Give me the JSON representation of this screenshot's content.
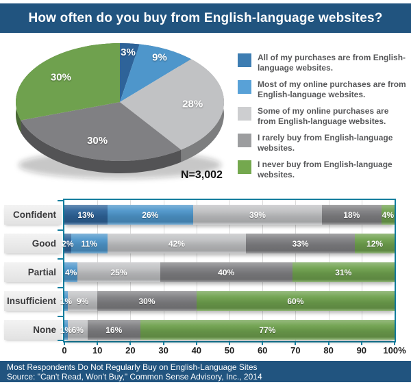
{
  "header": {
    "title": "How often do you buy from English-language websites?"
  },
  "colors": {
    "band_blue": "#21547F",
    "plot_border_teal": "#137E9E",
    "all_purchases": "#2E6399",
    "most_purchases": "#4E96CB",
    "some_purchases": "#C1C2C4",
    "rarely_buy": "#808083",
    "never_buy": "#6FA14E"
  },
  "chart_data": [
    {
      "type": "pie",
      "title": "How often do you buy from English-language websites?",
      "note": "N=3,002",
      "legend_position": "right",
      "slices": [
        {
          "label": "All of my purchases are from English-language websites.",
          "value": 3,
          "data_label": "3%",
          "color": "#2E6399",
          "swatch": "#3D7DB2"
        },
        {
          "label": "Most of my online purchases are from English-language websites.",
          "value": 9,
          "data_label": "9%",
          "color": "#4E96CB",
          "swatch": "#58A1D7"
        },
        {
          "label": "Some of my online purchases are from English-language websites.",
          "value": 28,
          "data_label": "28%",
          "color": "#C1C2C4",
          "swatch": "#CDCED0"
        },
        {
          "label": "I rarely buy from English-language websites.",
          "value": 30,
          "data_label": "30%",
          "color": "#808083",
          "swatch": "#9C9D9F"
        },
        {
          "label": "I never buy from English-language websites.",
          "value": 30,
          "data_label": "30%",
          "color": "#6FA14E",
          "swatch": "#74A84E"
        }
      ]
    },
    {
      "type": "bar",
      "orientation": "horizontal",
      "stacked": true,
      "categories": [
        "Confident",
        "Good",
        "Partial",
        "Insufficient",
        "None"
      ],
      "series": [
        {
          "name": "All of my purchases are from English-language websites.",
          "color": "#2E6399",
          "values": [
            13,
            2,
            0,
            0,
            0
          ]
        },
        {
          "name": "Most of my online purchases are from English-language websites.",
          "color": "#4E96CB",
          "values": [
            26,
            11,
            4,
            1,
            1
          ]
        },
        {
          "name": "Some of my online purchases are from English-language websites.",
          "color": "#C1C2C4",
          "values": [
            39,
            42,
            25,
            9,
            6
          ]
        },
        {
          "name": "I rarely buy from English-language websites.",
          "color": "#808083",
          "values": [
            18,
            33,
            40,
            30,
            16
          ]
        },
        {
          "name": "I never buy from English-language websites.",
          "color": "#6FA14E",
          "values": [
            4,
            12,
            31,
            60,
            77
          ]
        }
      ],
      "x_ticks": [
        "0",
        "10",
        "20",
        "30",
        "40",
        "50",
        "60",
        "70",
        "80",
        "90",
        "100%"
      ],
      "xlim": [
        0,
        100
      ],
      "value_suffix": "%",
      "grid": true
    }
  ],
  "footer": {
    "line1": "Most Respondents Do Not Regularly Buy on English-Language Sites",
    "line2": "Source: \"Can't Read, Won't Buy,\" Common Sense Advisory, Inc., 2014"
  }
}
